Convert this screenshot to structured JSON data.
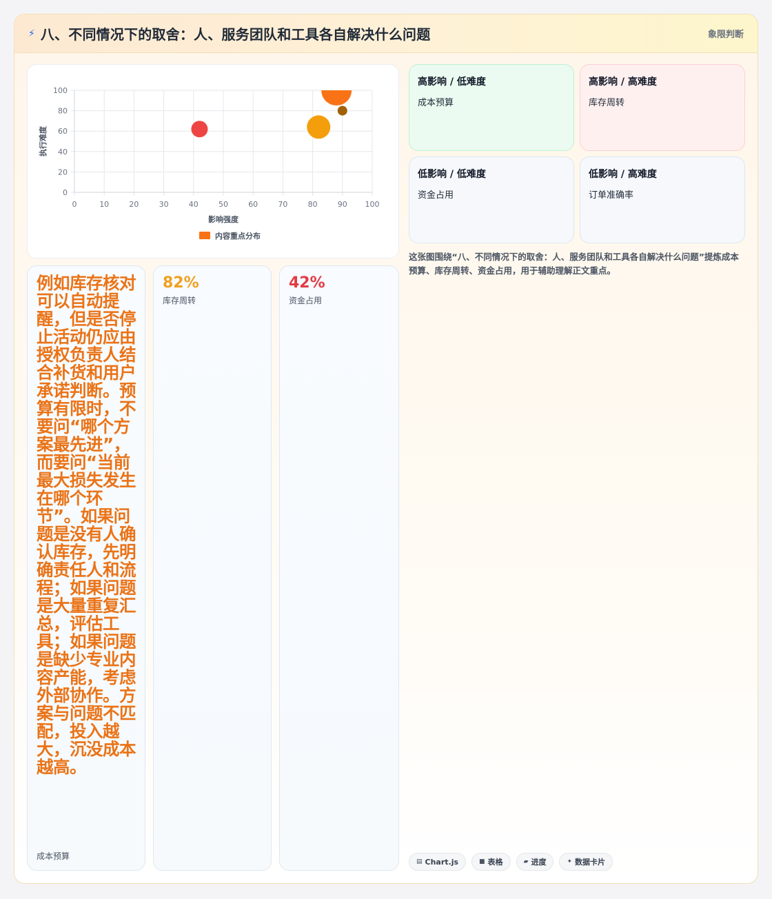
{
  "header": {
    "title": "八、不同情况下的取舍：人、服务团队和工具各自解决什么问题",
    "tag": "象限判断",
    "icon": "lightning-icon"
  },
  "quadrants": [
    {
      "title": "高影响 / 低难度",
      "item": "成本预算"
    },
    {
      "title": "高影响 / 高难度",
      "item": "库存周转"
    },
    {
      "title": "低影响 / 低难度",
      "item": "资金占用"
    },
    {
      "title": "低影响 / 高难度",
      "item": "订单准确率"
    }
  ],
  "description": "这张图围绕“八、不同情况下的取舍：人、服务团队和工具各自解决什么问题”提炼成本预算、库存周转、资金占用，用于辅助理解正文重点。",
  "tiles": [
    {
      "text": "例如库存核对可以自动提醒，但是否停止活动仍应由授权负责人结合补货和用户承诺判断。预算有限时，不要问“哪个方案最先进”，而要问“当前最大损失发生在哪个环节”。如果问题是没有人确认库存，先明确责任人和流程；如果问题是大量重复汇总，评估工具；如果问题是缺少专业内容产能，考虑外部协作。方案与问题不匹配，投入越大，沉没成本越高。",
      "label": "成本预算"
    },
    {
      "value": "82%",
      "label": "库存周转"
    },
    {
      "value": "42%",
      "label": "资金占用"
    }
  ],
  "chips": [
    {
      "icon": "chart-icon",
      "glyph": "▤",
      "label": "Chart.js"
    },
    {
      "icon": "table-icon",
      "glyph": "■",
      "label": "表格"
    },
    {
      "icon": "progress-icon",
      "glyph": "▰",
      "label": "进度"
    },
    {
      "icon": "sparkle-icon",
      "glyph": "✦",
      "label": "数据卡片"
    }
  ],
  "chart_data": {
    "type": "bubble",
    "title": "",
    "xlabel": "影响强度",
    "ylabel": "执行难度",
    "xlim": [
      0,
      100
    ],
    "ylim": [
      0,
      100
    ],
    "x_ticks": [
      "0",
      "10",
      "20",
      "30",
      "40",
      "50",
      "60",
      "70",
      "80",
      "90",
      "100"
    ],
    "y_ticks": [
      "0",
      "20",
      "40",
      "60",
      "80",
      "100"
    ],
    "grid": true,
    "legend_position": "bottom",
    "series": [
      {
        "name": "内容重点分布",
        "color": "#f97316",
        "points": [
          {
            "x": 42,
            "y": 62,
            "r": 12,
            "color": "#ef4444"
          },
          {
            "x": 82,
            "y": 64,
            "r": 17,
            "color": "#f59e0b"
          },
          {
            "x": 88,
            "y": 100,
            "r": 22,
            "color": "#f97316"
          },
          {
            "x": 90,
            "y": 80,
            "r": 7,
            "color": "#a16207"
          }
        ]
      }
    ]
  }
}
